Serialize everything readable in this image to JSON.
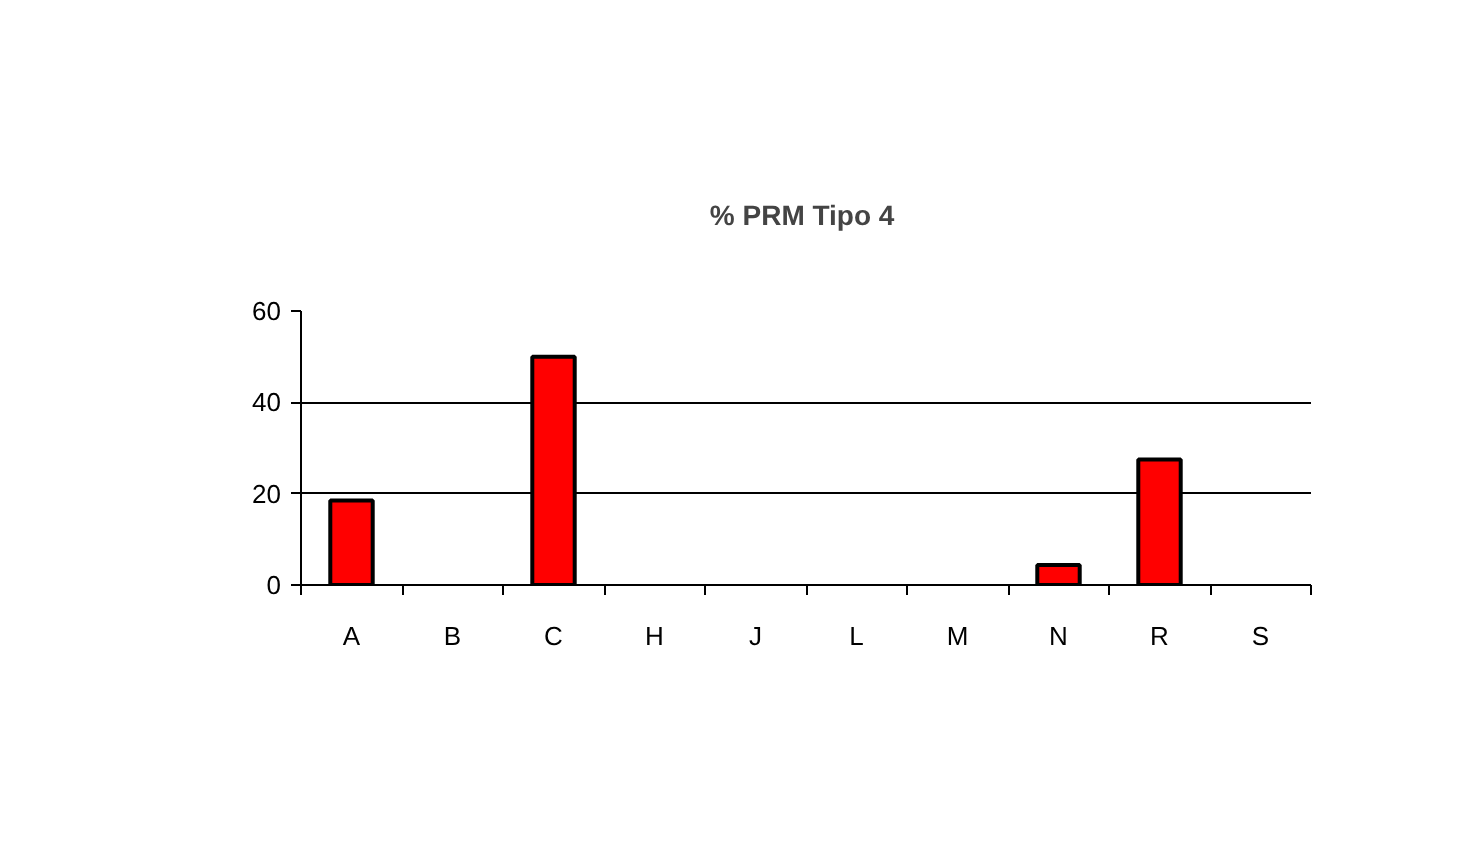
{
  "chart_data": {
    "type": "bar",
    "title": "%  PRM Tipo 4",
    "categories": [
      "A",
      "B",
      "C",
      "H",
      "J",
      "L",
      "M",
      "N",
      "R",
      "S"
    ],
    "values": [
      18.5,
      0,
      50,
      0,
      0,
      0,
      0,
      4.4,
      27.5,
      0
    ],
    "color": "#ff0000",
    "ylim": [
      0,
      60
    ],
    "yticks": [
      0,
      20,
      40,
      60
    ],
    "grid": "y"
  }
}
